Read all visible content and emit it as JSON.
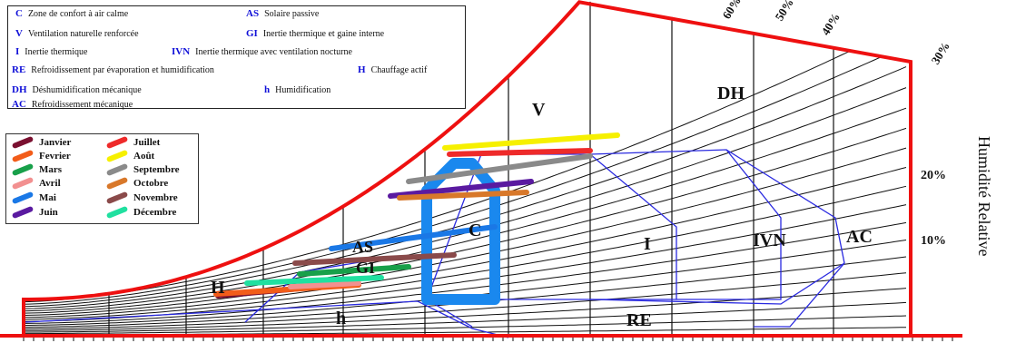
{
  "key": [
    {
      "abbr": "C",
      "text": "Zone de confort à air calme"
    },
    {
      "abbr": "AS",
      "text": "Solaire passive"
    },
    {
      "abbr": "V",
      "text": "Ventilation naturelle renforcée"
    },
    {
      "abbr": "GI",
      "text": "Inertie thermique et gaine interne"
    },
    {
      "abbr": "I",
      "text": "Inertie thermique"
    },
    {
      "abbr": "IVN",
      "text": "Inertie thermique avec ventilation nocturne"
    },
    {
      "abbr": "RE",
      "text": "Refroidissement par évaporation et humidification"
    },
    {
      "abbr": "H",
      "text": "Chauffage actif"
    },
    {
      "abbr": "DH",
      "text": "Déshumidification mécanique"
    },
    {
      "abbr": "h",
      "text": "Humidification"
    },
    {
      "abbr": "AC",
      "text": "Refroidissement mécanique"
    }
  ],
  "months": [
    {
      "name": "Janvier",
      "color": "#7a1030"
    },
    {
      "name": "Juillet",
      "color": "#ee2a2a"
    },
    {
      "name": "Fevrier",
      "color": "#f25c19"
    },
    {
      "name": "Août",
      "color": "#f6f000"
    },
    {
      "name": "Mars",
      "color": "#18a04a"
    },
    {
      "name": "Septembre",
      "color": "#8a8a8a"
    },
    {
      "name": "Avril",
      "color": "#f29090"
    },
    {
      "name": "Octobre",
      "color": "#d8782a"
    },
    {
      "name": "Mai",
      "color": "#1a78e6"
    },
    {
      "name": "Novembre",
      "color": "#8a4a4a"
    },
    {
      "name": "Juin",
      "color": "#5a1aa0"
    },
    {
      "name": "Décembre",
      "color": "#20e0a0"
    }
  ],
  "zones": {
    "V": "V",
    "DH": "DH",
    "C": "C",
    "I": "I",
    "IVN": "IVN",
    "AC": "AC",
    "AS": "AS",
    "GI": "GI",
    "H": "H",
    "h": "h",
    "RE": "RE"
  },
  "rh_labels": {
    "pct_60": "60%",
    "pct_50": "50%",
    "pct_40": "40%",
    "pct_30": "30%",
    "pct_20": "20%",
    "pct_10": "10%"
  },
  "axis_title": "Humidité Relative",
  "colors": {
    "boundary": "#ee1010",
    "zone_lines": "#2a2ae0",
    "comfort": "#1a88ee",
    "curves": "#111111"
  }
}
